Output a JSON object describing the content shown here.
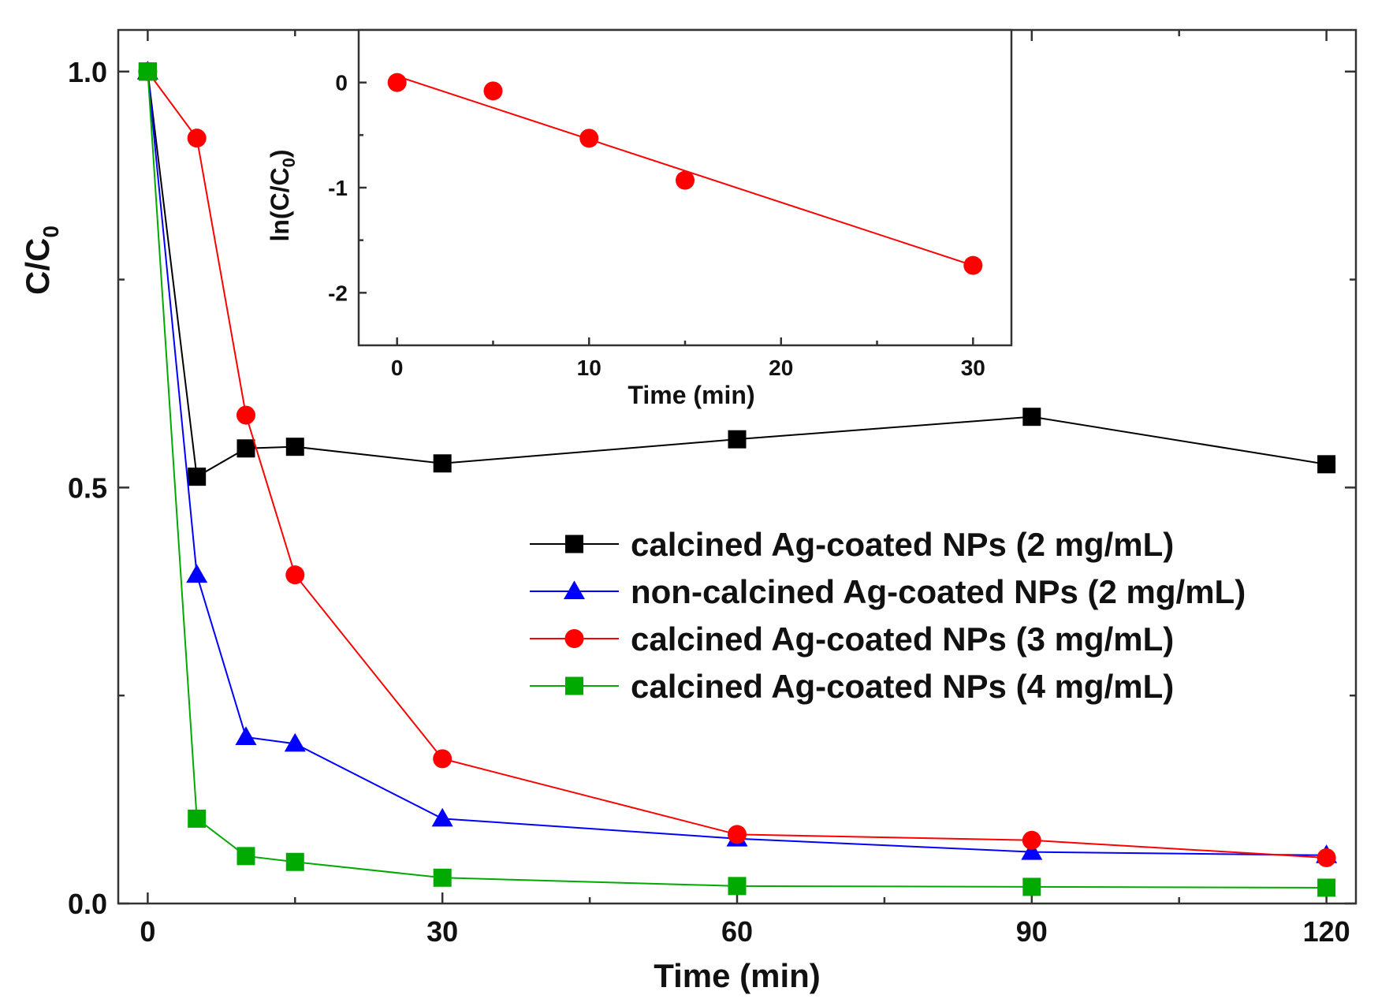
{
  "chart_data": [
    {
      "type": "line",
      "title": "",
      "xlabel": "Time (min)",
      "ylabel": "C/C",
      "ylabel_sub": "0",
      "xlim": [
        -3,
        123
      ],
      "ylim": [
        0,
        1.05
      ],
      "x_ticks": [
        0,
        30,
        60,
        90,
        120
      ],
      "x_tick_labels": [
        "0",
        "30",
        "60",
        "90",
        "120"
      ],
      "y_ticks": [
        0.0,
        0.5,
        1.0
      ],
      "y_tick_labels": [
        "0.0",
        "0.5",
        "1.0"
      ],
      "legend_position": "center-right",
      "series": [
        {
          "name": "calcined Ag-coated NPs (2 mg/mL)",
          "color": "#000000",
          "marker": "square",
          "x": [
            0,
            5,
            10,
            15,
            30,
            60,
            90,
            120
          ],
          "y": [
            1.0,
            0.513,
            0.547,
            0.549,
            0.529,
            0.558,
            0.585,
            0.528
          ]
        },
        {
          "name": "non-calcined Ag-coated NPs (2 mg/mL)",
          "color": "#0000ff",
          "marker": "triangle",
          "x": [
            0,
            5,
            10,
            15,
            30,
            60,
            90,
            120
          ],
          "y": [
            1.0,
            0.395,
            0.2,
            0.192,
            0.102,
            0.078,
            0.062,
            0.058
          ]
        },
        {
          "name": "calcined Ag-coated NPs (3 mg/mL)",
          "color": "#ff0000",
          "marker": "circle",
          "x": [
            0,
            5,
            10,
            15,
            30,
            60,
            90,
            120
          ],
          "y": [
            1.0,
            0.92,
            0.587,
            0.395,
            0.174,
            0.083,
            0.076,
            0.055
          ]
        },
        {
          "name": "calcined Ag-coated NPs (4 mg/mL)",
          "color": "#00aa00",
          "marker": "square",
          "x": [
            0,
            5,
            10,
            15,
            30,
            60,
            90,
            120
          ],
          "y": [
            1.0,
            0.102,
            0.057,
            0.05,
            0.031,
            0.021,
            0.02,
            0.019
          ]
        }
      ]
    },
    {
      "type": "scatter",
      "title": "",
      "xlabel": "Time (min)",
      "ylabel": "ln(C/C",
      "ylabel_sub": "0",
      "ylabel_close": ")",
      "xlim": [
        -2,
        32
      ],
      "ylim": [
        -2.5,
        0.5
      ],
      "x_ticks": [
        0,
        10,
        20,
        30
      ],
      "x_tick_labels": [
        "0",
        "10",
        "20",
        "30"
      ],
      "y_ticks": [
        -2,
        -1,
        0
      ],
      "y_tick_labels": [
        "-2",
        "-1",
        "0"
      ],
      "series": [
        {
          "color": "#ff0000",
          "marker": "circle",
          "x": [
            0,
            5,
            10,
            15,
            30
          ],
          "y": [
            0.0,
            -0.08,
            -0.53,
            -0.93,
            -1.74
          ]
        }
      ],
      "fit_line": {
        "color": "#ff0000",
        "x": [
          0,
          30
        ],
        "y": [
          0.06,
          -1.74
        ]
      }
    }
  ]
}
